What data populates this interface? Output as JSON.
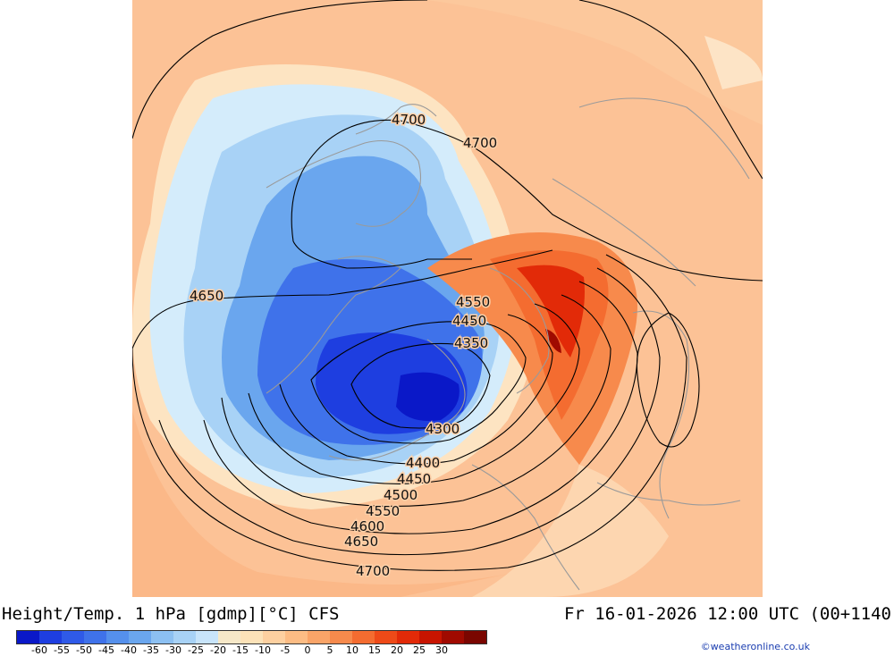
{
  "footer": {
    "title": "Height/Temp. 1 hPa [gdmp][°C] CFS",
    "datetime": "Fr 16-01-2026 12:00 UTC (00+1140"
  },
  "colorbar": {
    "ticks": [
      "-60",
      "-55",
      "-50",
      "-45",
      "-40",
      "-35",
      "-30",
      "-25",
      "-20",
      "-15",
      "-10",
      "-5",
      "0",
      "5",
      "10",
      "15",
      "20",
      "25",
      "30"
    ],
    "colors": [
      "#0a18c8",
      "#1e3ee0",
      "#2f5ae8",
      "#3f72ea",
      "#5590ec",
      "#6aa6ee",
      "#8cc0f2",
      "#a8d2f6",
      "#c8e4fa",
      "#f6e8c8",
      "#fce2b8",
      "#fdd0a0",
      "#fcbc84",
      "#f9a468",
      "#f78a4c",
      "#f46c30",
      "#ee4a18",
      "#e22a08",
      "#c81400",
      "#a00a00",
      "#7a0600"
    ]
  },
  "credit": "©weatheronline.co.uk",
  "contour_labels": [
    "4700",
    "4700",
    "4650",
    "4550",
    "4450",
    "4350",
    "4300",
    "4400",
    "4450",
    "4500",
    "4550",
    "4600",
    "4650",
    "4700"
  ]
}
